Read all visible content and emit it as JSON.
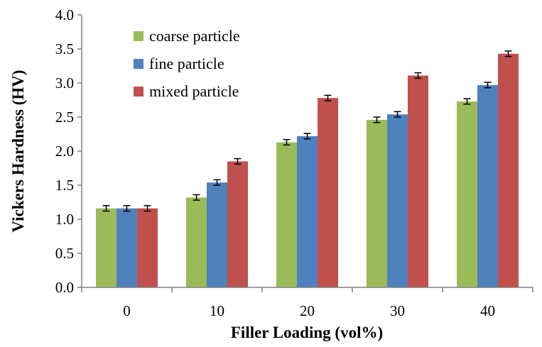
{
  "chart_data": {
    "type": "bar",
    "xlabel": "Filler Loading (vol%)",
    "ylabel": "Vickers Hardness (HV)",
    "categories": [
      "0",
      "10",
      "20",
      "30",
      "40"
    ],
    "ylim": [
      0,
      4
    ],
    "yticks": [
      "0.0",
      "0.5",
      "1.0",
      "1.5",
      "2.0",
      "2.5",
      "3.0",
      "3.5",
      "4.0"
    ],
    "grid": false,
    "legend_position": "top-left",
    "series": [
      {
        "name": "coarse particle",
        "color": "#9bbb59",
        "values": [
          1.16,
          1.32,
          2.13,
          2.46,
          2.73
        ],
        "errors": [
          0.04,
          0.04,
          0.04,
          0.04,
          0.04
        ]
      },
      {
        "name": "fine particle",
        "color": "#4f81bd",
        "values": [
          1.16,
          1.54,
          2.22,
          2.54,
          2.97
        ],
        "errors": [
          0.04,
          0.04,
          0.04,
          0.04,
          0.04
        ]
      },
      {
        "name": "mixed particle",
        "color": "#c0504d",
        "values": [
          1.16,
          1.85,
          2.78,
          3.11,
          3.43
        ],
        "errors": [
          0.04,
          0.04,
          0.04,
          0.04,
          0.04
        ]
      }
    ]
  }
}
